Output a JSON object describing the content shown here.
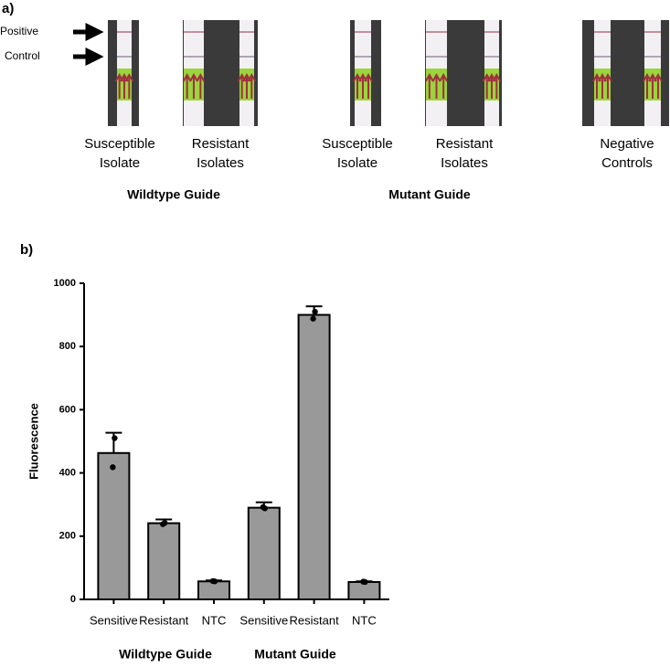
{
  "panel_a": {
    "label": "a)",
    "arrows": [
      "Positive",
      "Control"
    ],
    "strip_labels": [
      [
        "Susceptible",
        "Isolate"
      ],
      [
        "Resistant",
        "Isolates"
      ],
      [
        "Susceptible",
        "Isolate"
      ],
      [
        "Resistant",
        "Isolates"
      ],
      [
        "Negative",
        "Controls"
      ]
    ],
    "group_labels": [
      "Wildtype Guide",
      "Mutant Guide"
    ]
  },
  "chart_data": {
    "type": "bar",
    "panel_label": "b)",
    "y_label": "Fluorescence",
    "categories": [
      "Sensitive",
      "Resistant",
      "NTC",
      "Sensitive",
      "Resistant",
      "NTC"
    ],
    "values": [
      463,
      241,
      57,
      290,
      900,
      55
    ],
    "errors": [
      64,
      12,
      3,
      17,
      27,
      2
    ],
    "points": [
      [
        510,
        418
      ],
      [
        242,
        238
      ],
      [
        57,
        58
      ],
      [
        288,
        292
      ],
      [
        910,
        888
      ],
      [
        55,
        56
      ]
    ],
    "group_labels": [
      "Wildtype Guide",
      "Mutant Guide"
    ],
    "color": "#999999",
    "ylim": [
      0,
      1000
    ],
    "yticks": [
      0,
      200,
      400,
      600,
      800,
      1000
    ]
  }
}
